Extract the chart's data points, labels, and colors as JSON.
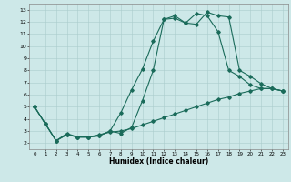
{
  "xlabel": "Humidex (Indice chaleur)",
  "bg_color": "#cde8e8",
  "grid_color": "#aacccc",
  "line_color": "#1a6b5a",
  "xlim": [
    -0.5,
    23.5
  ],
  "ylim": [
    1.5,
    13.5
  ],
  "xticks": [
    0,
    1,
    2,
    3,
    4,
    5,
    6,
    7,
    8,
    9,
    10,
    11,
    12,
    13,
    14,
    15,
    16,
    17,
    18,
    19,
    20,
    21,
    22,
    23
  ],
  "yticks": [
    2,
    3,
    4,
    5,
    6,
    7,
    8,
    9,
    10,
    11,
    12,
    13
  ],
  "series1_x": [
    0,
    1,
    2,
    3,
    4,
    5,
    6,
    7,
    8,
    9,
    10,
    11,
    12,
    13,
    14,
    15,
    16,
    17,
    18,
    19,
    20,
    21,
    22,
    23
  ],
  "series1_y": [
    5.0,
    3.6,
    2.2,
    2.7,
    2.5,
    2.5,
    2.6,
    3.0,
    2.8,
    3.3,
    5.5,
    8.0,
    12.2,
    12.5,
    11.9,
    11.8,
    12.8,
    12.5,
    12.4,
    8.0,
    7.5,
    6.9,
    6.5,
    6.3
  ],
  "series2_x": [
    0,
    1,
    2,
    3,
    4,
    5,
    6,
    7,
    8,
    9,
    10,
    11,
    12,
    13,
    14,
    15,
    16,
    17,
    18,
    19,
    20,
    21,
    22,
    23
  ],
  "series2_y": [
    5.0,
    3.6,
    2.2,
    2.7,
    2.5,
    2.5,
    2.6,
    3.0,
    4.5,
    6.4,
    8.1,
    10.4,
    12.2,
    12.3,
    11.9,
    12.7,
    12.5,
    11.2,
    8.0,
    7.5,
    6.8,
    6.5,
    6.5,
    6.3
  ],
  "series3_x": [
    0,
    1,
    2,
    3,
    4,
    5,
    6,
    7,
    8,
    9,
    10,
    11,
    12,
    13,
    14,
    15,
    16,
    17,
    18,
    19,
    20,
    21,
    22,
    23
  ],
  "series3_y": [
    5.0,
    3.6,
    2.2,
    2.8,
    2.5,
    2.5,
    2.7,
    2.9,
    3.0,
    3.2,
    3.5,
    3.8,
    4.1,
    4.4,
    4.7,
    5.0,
    5.3,
    5.6,
    5.8,
    6.1,
    6.3,
    6.5,
    6.5,
    6.3
  ]
}
